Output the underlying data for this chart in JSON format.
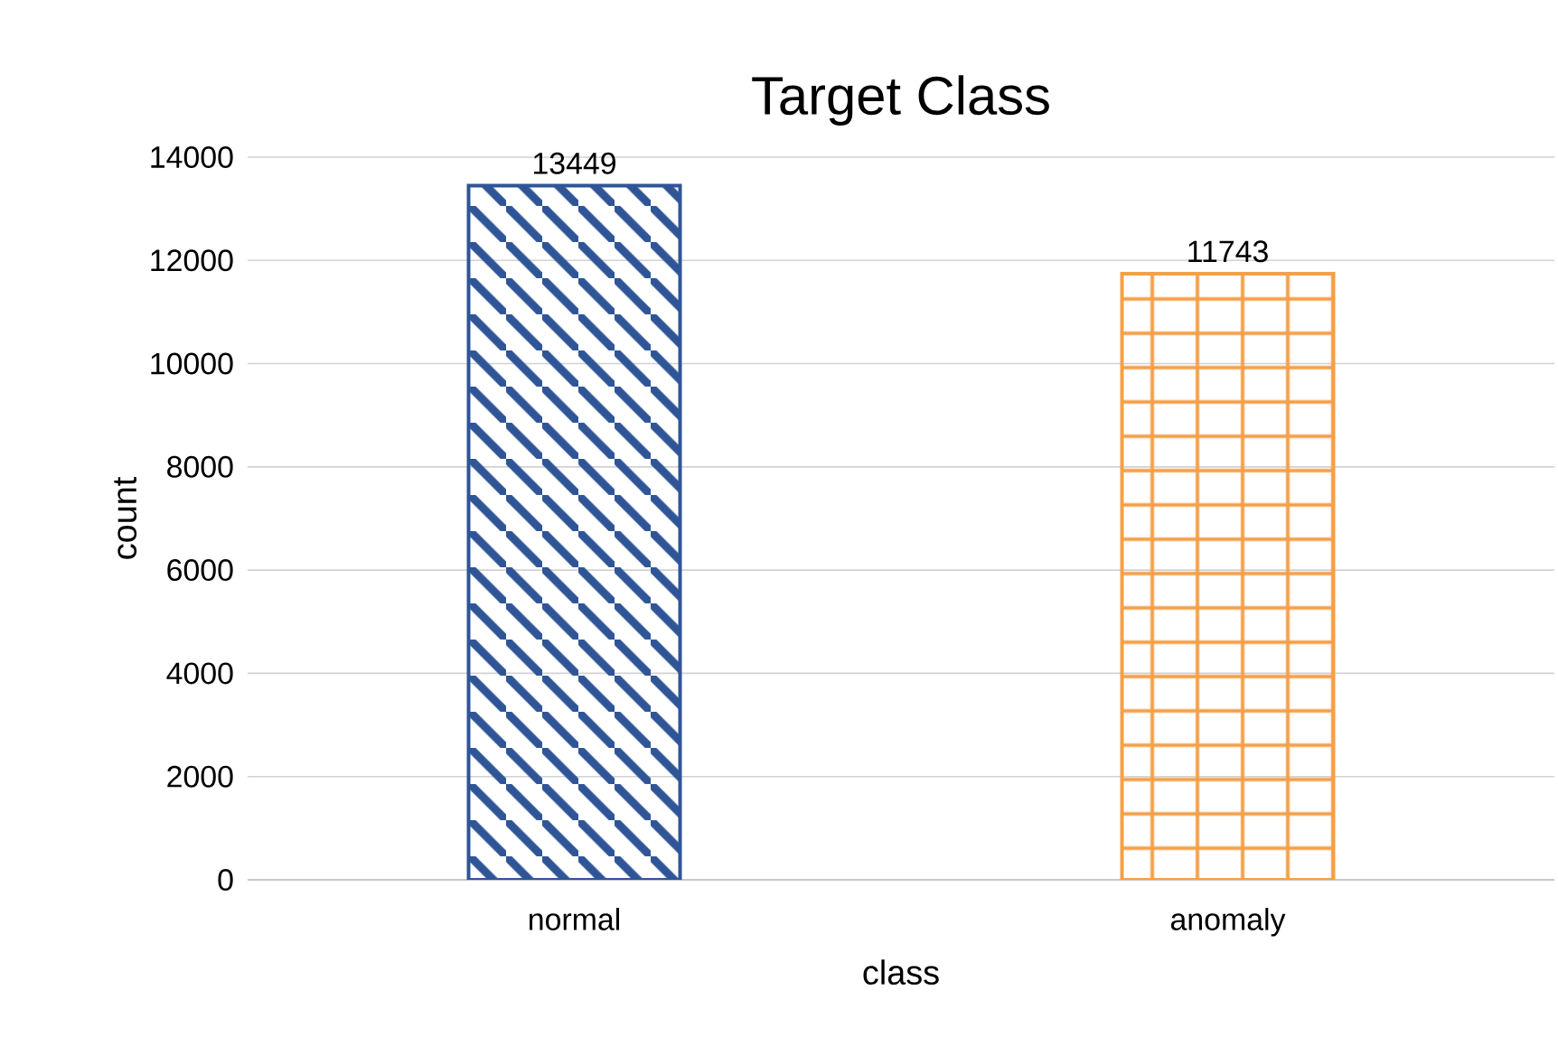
{
  "chart_data": {
    "type": "bar",
    "title": "Target Class",
    "xlabel": "class",
    "ylabel": "count",
    "categories": [
      "normal",
      "anomaly"
    ],
    "values": [
      13449,
      11743
    ],
    "colors": [
      "#2f5597",
      "#f4a04a"
    ],
    "ylim": [
      0,
      14000
    ],
    "yticks": [
      0,
      2000,
      4000,
      6000,
      8000,
      10000,
      12000,
      14000
    ],
    "grid": "y",
    "data_labels": true
  }
}
